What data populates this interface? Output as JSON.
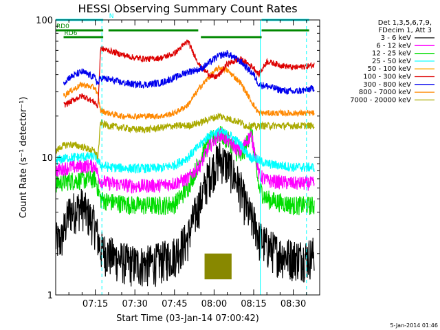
{
  "chart_data": {
    "type": "line",
    "title": "HESSI Observing Summary Count Rates",
    "xlabel": "Start Time (03-Jan-14 07:00:42)",
    "ylabel": "Count Rate (s⁻¹ detector⁻¹)",
    "yscale": "log",
    "ylim": [
      1,
      100
    ],
    "xlim_minutes": [
      0,
      100
    ],
    "x_ticks": [
      {
        "m": 15,
        "label": "07:15"
      },
      {
        "m": 30,
        "label": "07:30"
      },
      {
        "m": 45,
        "label": "07:45"
      },
      {
        "m": 60,
        "label": "08:00"
      },
      {
        "m": 75,
        "label": "08:15"
      },
      {
        "m": 90,
        "label": "08:30"
      }
    ],
    "y_ticks": [
      {
        "v": 1,
        "label": "1"
      },
      {
        "v": 10,
        "label": "10"
      },
      {
        "v": 100,
        "label": "100"
      }
    ],
    "grid": false,
    "legend_position": "right",
    "legend_header": [
      "Det 1,3,5,6,7,9,",
      "FDecim 1, Att 3"
    ],
    "series": [
      {
        "name": "3 - 6 keV",
        "color": "#000000",
        "noise": 0.35,
        "x": [
          0,
          2,
          5,
          10,
          15,
          16,
          17,
          20,
          25,
          30,
          35,
          40,
          45,
          50,
          52,
          55,
          58,
          62,
          66,
          70,
          72,
          74,
          76,
          77,
          80,
          85,
          90,
          95,
          98
        ],
        "y": [
          2.5,
          2.5,
          4.0,
          4.5,
          3.2,
          2.6,
          2.2,
          2.0,
          1.8,
          1.7,
          1.7,
          1.8,
          2.0,
          2.6,
          3.5,
          5.0,
          7.5,
          10.0,
          8.5,
          6.0,
          4.5,
          3.6,
          3.2,
          2.6,
          2.3,
          2.0,
          1.9,
          1.9,
          2.0
        ]
      },
      {
        "name": "6 - 12 keV",
        "color": "#ff00ff",
        "noise": 0.12,
        "x": [
          0,
          5,
          15,
          16,
          17,
          20,
          30,
          40,
          45,
          50,
          55,
          58,
          62,
          66,
          70,
          72,
          74,
          76,
          77,
          80,
          90,
          98
        ],
        "y": [
          8.0,
          8.5,
          8.8,
          7.5,
          6.8,
          6.5,
          6.2,
          6.3,
          6.5,
          7.0,
          9.0,
          12.0,
          15.0,
          13.0,
          11.0,
          13.0,
          14.5,
          10.0,
          7.5,
          6.8,
          6.5,
          6.5
        ]
      },
      {
        "name": "12 - 25 keV",
        "color": "#00dd00",
        "noise": 0.16,
        "x": [
          0,
          5,
          15,
          16,
          17,
          20,
          30,
          40,
          45,
          50,
          55,
          58,
          62,
          66,
          70,
          72,
          74,
          75,
          76,
          77,
          80,
          90,
          98
        ],
        "y": [
          6.5,
          6.8,
          7.0,
          6.0,
          5.0,
          4.8,
          4.5,
          4.5,
          4.6,
          6.0,
          10.0,
          13.0,
          15.0,
          13.0,
          10.0,
          12.0,
          16.0,
          12.0,
          8.0,
          6.0,
          5.0,
          4.5,
          4.5
        ]
      },
      {
        "name": "25 - 50 keV",
        "color": "#00ffff",
        "noise": 0.08,
        "x": [
          0,
          5,
          15,
          16,
          17,
          20,
          30,
          40,
          45,
          50,
          55,
          58,
          62,
          66,
          70,
          72,
          74,
          76,
          77,
          80,
          90,
          98
        ],
        "y": [
          9.5,
          10.0,
          10.2,
          9.5,
          8.8,
          8.5,
          8.3,
          8.4,
          8.8,
          10.0,
          12.5,
          14.5,
          15.5,
          14.5,
          12.5,
          11.0,
          10.0,
          9.8,
          9.5,
          9.0,
          8.5,
          8.5
        ]
      },
      {
        "name": "50 - 100 keV",
        "color": "#ffaa00",
        "noise": 0.0,
        "x": [],
        "y": []
      },
      {
        "name": "100 - 300 keV",
        "color": "#dd0000",
        "noise": 0.05,
        "x": [
          3,
          5,
          8,
          10,
          12,
          15,
          16,
          17,
          20,
          25,
          30,
          35,
          40,
          45,
          50,
          55,
          60,
          62,
          65,
          70,
          75,
          77,
          80,
          85,
          90,
          95,
          98
        ],
        "y": [
          24,
          25,
          27,
          28,
          27,
          25,
          23,
          62,
          60,
          56,
          53,
          52,
          53,
          57,
          70,
          45,
          38,
          40,
          48,
          52,
          45,
          40,
          50,
          47,
          45,
          46,
          47
        ]
      },
      {
        "name": "300 - 800 keV",
        "color": "#0000ee",
        "noise": 0.06,
        "x": [
          3,
          5,
          10,
          15,
          16,
          17,
          20,
          25,
          30,
          35,
          40,
          45,
          50,
          55,
          60,
          62,
          65,
          70,
          75,
          77,
          80,
          85,
          90,
          95,
          98
        ],
        "y": [
          35,
          38,
          42,
          38,
          34,
          38,
          37,
          35,
          34,
          34,
          35,
          38,
          42,
          44,
          52,
          55,
          57,
          50,
          40,
          34,
          33,
          31,
          30,
          31,
          32
        ]
      },
      {
        "name": "800 - 7000 keV",
        "color": "#ff8800",
        "noise": 0.05,
        "x": [
          3,
          5,
          10,
          15,
          16,
          17,
          20,
          25,
          30,
          35,
          40,
          45,
          50,
          55,
          60,
          62,
          65,
          70,
          75,
          77,
          80,
          85,
          90,
          95,
          98
        ],
        "y": [
          28,
          30,
          34,
          32,
          28,
          22,
          21,
          20,
          20,
          20,
          20,
          21,
          24,
          33,
          42,
          45,
          43,
          35,
          24,
          21,
          21,
          21,
          21,
          21,
          21
        ]
      },
      {
        "name": "7000 - 20000 keV",
        "color": "#aaaa00",
        "noise": 0.06,
        "x": [
          0,
          2,
          5,
          10,
          15,
          16,
          17,
          20,
          25,
          30,
          35,
          40,
          45,
          50,
          55,
          58,
          62,
          66,
          70,
          72,
          75,
          76,
          77,
          80,
          85,
          90,
          98
        ],
        "y": [
          11,
          12,
          12.5,
          12,
          11,
          10,
          18,
          17,
          16.5,
          16,
          16,
          16.5,
          17,
          17,
          18,
          19,
          20,
          19,
          18,
          17,
          17,
          16.5,
          17,
          17,
          17,
          17,
          17
        ]
      }
    ],
    "yellow_band": {
      "x_from": 56.5,
      "x_to": 66.5,
      "y_low": 1.3,
      "y_high": 2.0
    },
    "annotations": {
      "vlines": [
        {
          "m": 17.5,
          "style": "dashed",
          "color": "#00ffff"
        },
        {
          "m": 77.5,
          "style": "solid",
          "color": "#00ffff"
        },
        {
          "m": 95.0,
          "style": "dashed",
          "color": "#00ffff"
        }
      ],
      "state_bars": [
        {
          "label": "",
          "color": "#00ffff",
          "y": 100,
          "x_from": 0,
          "x_to": 18
        },
        {
          "label": "N",
          "color": "#00ffff",
          "y": 100,
          "x_from": 20,
          "x_to": 20
        },
        {
          "label": "",
          "color": "#00ffff",
          "y": 100,
          "x_from": 78,
          "x_to": 96
        },
        {
          "label": "RD0",
          "color": "#008800",
          "y": 84,
          "x_from": 0,
          "x_to": 18
        },
        {
          "label": "",
          "color": "#008800",
          "y": 84,
          "x_from": 20,
          "x_to": 54
        },
        {
          "label": "",
          "color": "#008800",
          "y": 84,
          "x_from": 78,
          "x_to": 96
        },
        {
          "label": "RD6",
          "color": "#008800",
          "y": 75,
          "x_from": 3,
          "x_to": 18
        },
        {
          "label": "",
          "color": "#008800",
          "y": 75,
          "x_from": 55,
          "x_to": 78
        }
      ]
    },
    "footer": "5-Jan-2014 01:46"
  }
}
